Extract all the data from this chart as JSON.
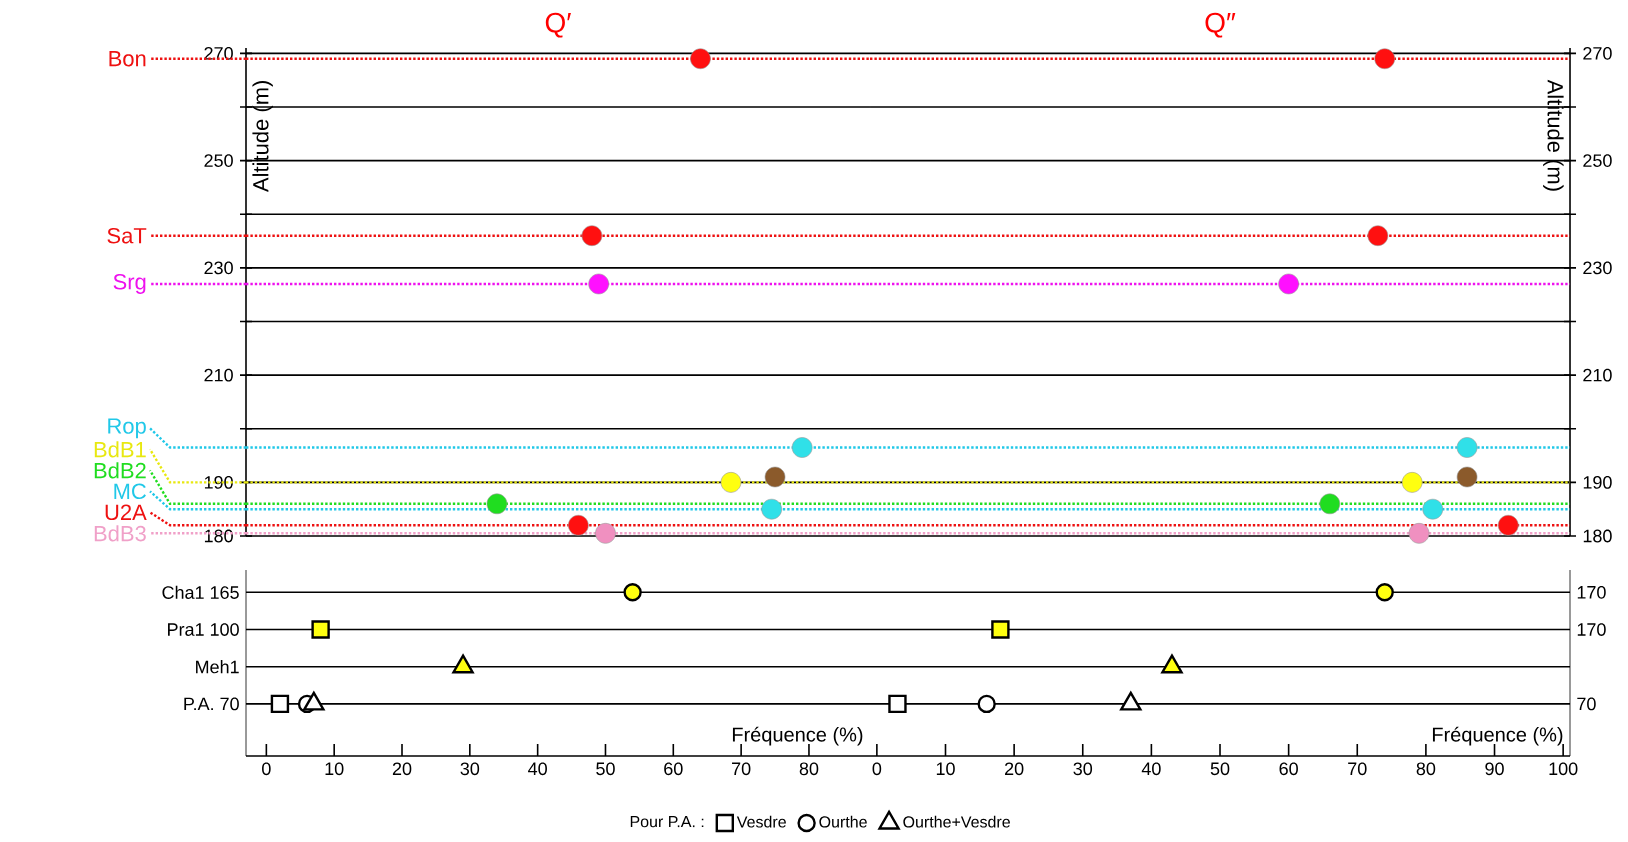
{
  "chart_data": [
    {
      "type": "scatter",
      "title": "Q′",
      "ylabel": "Altitude (m)",
      "xlim": [
        -3,
        89
      ],
      "ylim": [
        180,
        271
      ],
      "yticks": [
        180,
        190,
        {
          "value": 200,
          "label": null
        },
        210,
        {
          "value": 220,
          "label": null
        },
        230,
        {
          "value": 240,
          "label": null
        },
        250,
        {
          "value": 260,
          "label": null
        },
        270
      ],
      "grid": "y",
      "tick_labels": "y",
      "series": [
        {
          "x": [
            64,
            48,
            49,
            79,
            68.5,
            75,
            34,
            74.5,
            46,
            50
          ],
          "values": [
            269,
            236,
            227,
            196.5,
            190,
            191,
            186,
            185,
            182,
            180.5
          ],
          "colors": [
            "#ff1010",
            "#ff1010",
            "#ff10ff",
            "#30e0e8",
            "#ffff10",
            "#8b5a2b",
            "#20dd20",
            "#30e0e8",
            "#ff1010",
            "#f090c0"
          ],
          "marker": "circle"
        }
      ],
      "ref_lines": [
        {
          "axis": "y",
          "value": 269,
          "label": "Bon",
          "color": "#ee1111",
          "line_style": "dotted"
        },
        {
          "axis": "y",
          "value": 236,
          "label": "SaT",
          "color": "#ee1111",
          "line_style": "dotted"
        },
        {
          "axis": "y",
          "value": 227,
          "label": "Srg",
          "color": "#ee11ee",
          "line_style": "dotted"
        },
        {
          "axis": "y",
          "value": 196.5,
          "label": "Rop",
          "color": "#20c8e8",
          "line_style": "dotted"
        },
        {
          "axis": "y",
          "value": 190,
          "label": "BdB1",
          "color": "#e8e810",
          "line_style": "dotted"
        },
        {
          "axis": "y",
          "value": 186,
          "label": "BdB2",
          "color": "#20dd20",
          "line_style": "dotted"
        },
        {
          "axis": "y",
          "value": 185,
          "label": "MC",
          "color": "#20c8e8",
          "line_style": "dotted"
        },
        {
          "axis": "y",
          "value": 182,
          "label": "U2A",
          "color": "#ee1111",
          "line_style": "dotted"
        },
        {
          "axis": "y",
          "value": 180.5,
          "label": "BdB3",
          "color": "#f0a0c8",
          "line_style": "dotted"
        }
      ]
    },
    {
      "type": "scatter",
      "title": "Q″",
      "ylabel": "Altitude (m)",
      "xlim": [
        -1,
        101
      ],
      "ylim": [
        180,
        271
      ],
      "yticks": [
        180,
        190,
        {
          "value": 200,
          "label": null
        },
        210,
        {
          "value": 220,
          "label": null
        },
        230,
        {
          "value": 240,
          "label": null
        },
        250,
        {
          "value": 260,
          "label": null
        },
        270
      ],
      "grid": "y",
      "tick_labels": "y",
      "series": [
        {
          "x": [
            74,
            73,
            60,
            86,
            78,
            86,
            66,
            81,
            92,
            79
          ],
          "values": [
            269,
            236,
            227,
            196.5,
            190,
            191,
            186,
            185,
            182,
            180.5
          ],
          "colors": [
            "#ff1010",
            "#ff1010",
            "#ff10ff",
            "#30e0e8",
            "#ffff10",
            "#8b5a2b",
            "#20dd20",
            "#30e0e8",
            "#ff1010",
            "#f090c0"
          ],
          "marker": "circle"
        }
      ],
      "ref_lines": [
        {
          "axis": "y",
          "value": 269,
          "color": "#ee1111",
          "line_style": "dotted"
        },
        {
          "axis": "y",
          "value": 236,
          "color": "#ee1111",
          "line_style": "dotted"
        },
        {
          "axis": "y",
          "value": 227,
          "color": "#ee11ee",
          "line_style": "dotted"
        },
        {
          "axis": "y",
          "value": 196.5,
          "color": "#20c8e8",
          "line_style": "dotted"
        },
        {
          "axis": "y",
          "value": 190,
          "color": "#e8e810",
          "line_style": "dotted"
        },
        {
          "axis": "y",
          "value": 186,
          "color": "#20dd20",
          "line_style": "dotted"
        },
        {
          "axis": "y",
          "value": 185,
          "color": "#20c8e8",
          "line_style": "dotted"
        },
        {
          "axis": "y",
          "value": 182,
          "color": "#ee1111",
          "line_style": "dotted"
        },
        {
          "axis": "y",
          "value": 180.5,
          "color": "#f0a0c8",
          "line_style": "dotted"
        }
      ]
    },
    {
      "type": "scatter",
      "orientation": "horizontal",
      "categories": [
        "Cha1 165",
        "Pra1 100",
        "Meh1",
        "P.A. 70"
      ],
      "xlabel": "Fréquence (%)",
      "xlim": [
        -3,
        89
      ],
      "xticks": [
        0,
        10,
        20,
        30,
        40,
        50,
        60,
        70,
        80
      ],
      "grid": "y",
      "legend": "bottom",
      "legend_title": "Pour P.A. :",
      "series": [
        {
          "color": "#ffff10",
          "marker": "circle",
          "values": [
            54,
            null,
            null,
            null
          ]
        },
        {
          "color": "#ffff10",
          "marker": "square",
          "values": [
            null,
            8,
            null,
            null
          ]
        },
        {
          "color": "#ffff10",
          "marker": "triangle",
          "values": [
            null,
            null,
            29,
            null
          ]
        },
        {
          "name": "Vesdre",
          "color": "#ffffff",
          "marker": "square",
          "values": [
            null,
            null,
            null,
            2
          ]
        },
        {
          "name": "Ourthe",
          "color": "#ffffff",
          "marker": "circle",
          "values": [
            null,
            null,
            null,
            6
          ]
        },
        {
          "name": "Ourthe+Vesdre",
          "color": "#ffffff",
          "marker": "triangle",
          "values": [
            null,
            null,
            null,
            7
          ]
        }
      ]
    },
    {
      "type": "scatter",
      "orientation": "horizontal",
      "categories": [
        "170",
        "170",
        null,
        "70"
      ],
      "xlabel": "Fréquence (%)",
      "xlim": [
        -1,
        101
      ],
      "xticks": [
        0,
        10,
        20,
        30,
        40,
        50,
        60,
        70,
        80,
        90,
        100
      ],
      "grid": "y",
      "series": [
        {
          "color": "#ffff10",
          "marker": "circle",
          "values": [
            74,
            null,
            null,
            null
          ]
        },
        {
          "color": "#ffff10",
          "marker": "square",
          "values": [
            null,
            18,
            null,
            null
          ]
        },
        {
          "color": "#ffff10",
          "marker": "triangle",
          "values": [
            null,
            null,
            43,
            null
          ]
        },
        {
          "color": "#ffffff",
          "marker": "square",
          "values": [
            null,
            null,
            null,
            3
          ]
        },
        {
          "color": "#ffffff",
          "marker": "circle",
          "values": [
            null,
            null,
            null,
            16
          ]
        },
        {
          "color": "#ffffff",
          "marker": "triangle",
          "values": [
            null,
            null,
            null,
            37
          ]
        }
      ]
    }
  ]
}
